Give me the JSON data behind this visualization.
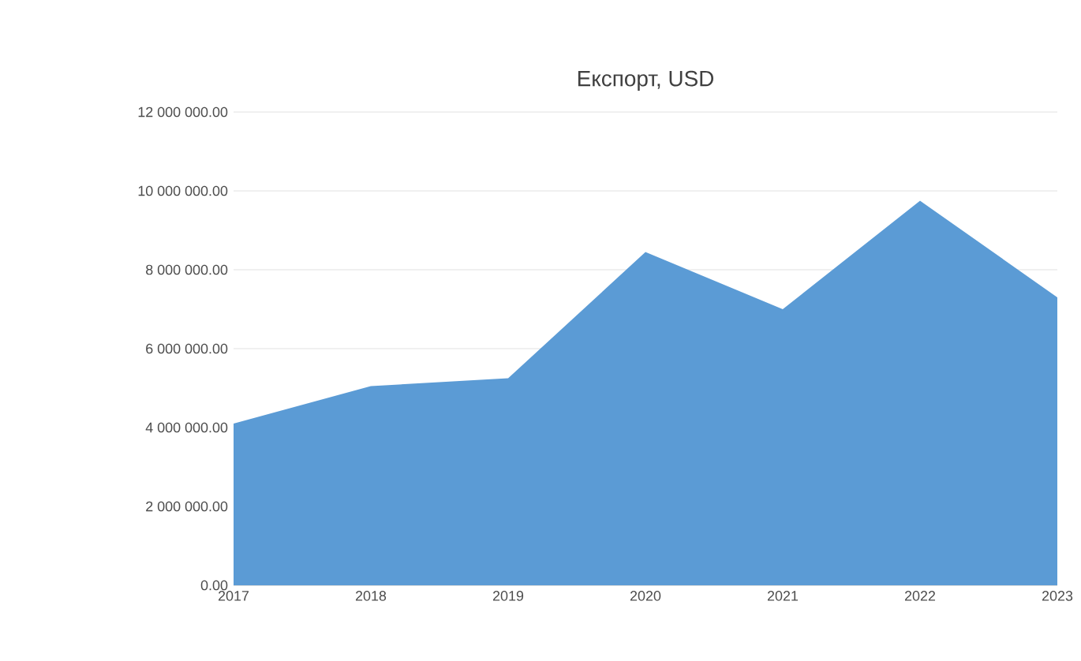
{
  "chart_data": {
    "type": "area",
    "title": "Експорт, USD",
    "categories": [
      "2017",
      "2018",
      "2019",
      "2020",
      "2021",
      "2022",
      "2023"
    ],
    "values": [
      4100000,
      5050000,
      5250000,
      8450000,
      7000000,
      9750000,
      7300000
    ],
    "color": "#5b9bd5",
    "ylim": [
      0,
      12000000
    ],
    "yticks": [
      {
        "value": 0,
        "label": "0.00"
      },
      {
        "value": 2000000,
        "label": "2 000 000.00"
      },
      {
        "value": 4000000,
        "label": "4 000 000.00"
      },
      {
        "value": 6000000,
        "label": "6 000 000.00"
      },
      {
        "value": 8000000,
        "label": "8 000 000.00"
      },
      {
        "value": 10000000,
        "label": "10 000 000.00"
      },
      {
        "value": 12000000,
        "label": "12 000 000.00"
      }
    ],
    "grid": "y"
  }
}
